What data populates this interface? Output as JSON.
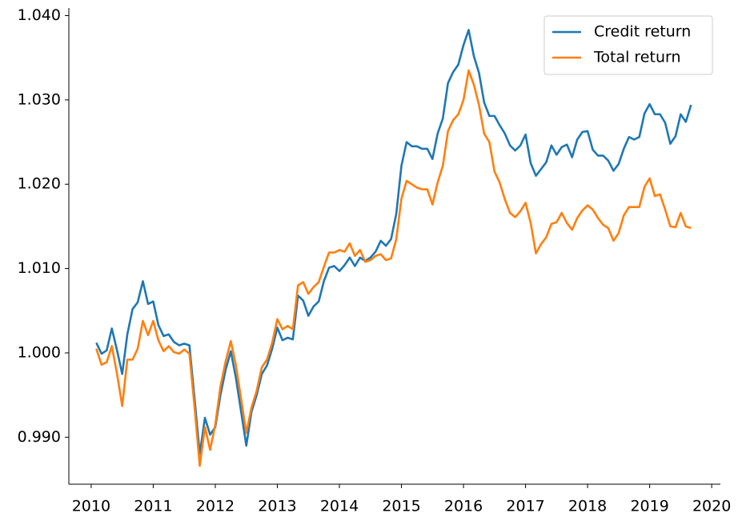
{
  "chart_data": {
    "type": "line",
    "x": [
      2010.083,
      2010.167,
      2010.25,
      2010.333,
      2010.417,
      2010.5,
      2010.583,
      2010.667,
      2010.75,
      2010.833,
      2010.917,
      2011.0,
      2011.083,
      2011.167,
      2011.25,
      2011.333,
      2011.417,
      2011.5,
      2011.583,
      2011.667,
      2011.75,
      2011.833,
      2011.917,
      2012.0,
      2012.083,
      2012.167,
      2012.25,
      2012.333,
      2012.417,
      2012.5,
      2012.583,
      2012.667,
      2012.75,
      2012.833,
      2012.917,
      2013.0,
      2013.083,
      2013.167,
      2013.25,
      2013.333,
      2013.417,
      2013.5,
      2013.583,
      2013.667,
      2013.75,
      2013.833,
      2013.917,
      2014.0,
      2014.083,
      2014.167,
      2014.25,
      2014.333,
      2014.417,
      2014.5,
      2014.583,
      2014.667,
      2014.75,
      2014.833,
      2014.917,
      2015.0,
      2015.083,
      2015.167,
      2015.25,
      2015.333,
      2015.417,
      2015.5,
      2015.583,
      2015.667,
      2015.75,
      2015.833,
      2015.917,
      2016.0,
      2016.083,
      2016.167,
      2016.25,
      2016.333,
      2016.417,
      2016.5,
      2016.583,
      2016.667,
      2016.75,
      2016.833,
      2016.917,
      2017.0,
      2017.083,
      2017.167,
      2017.25,
      2017.333,
      2017.417,
      2017.5,
      2017.583,
      2017.667,
      2017.75,
      2017.833,
      2017.917,
      2018.0,
      2018.083,
      2018.167,
      2018.25,
      2018.333,
      2018.417,
      2018.5,
      2018.583,
      2018.667,
      2018.75,
      2018.833,
      2018.917,
      2019.0,
      2019.083,
      2019.167,
      2019.25,
      2019.333,
      2019.417,
      2019.5,
      2019.583,
      2019.667
    ],
    "series": [
      {
        "name": "Credit return",
        "color": "#1f77b4",
        "values": [
          1.0012,
          0.9999,
          1.0003,
          1.0029,
          1.0003,
          0.9975,
          1.0022,
          1.0052,
          1.006,
          1.0085,
          1.0058,
          1.0061,
          1.0033,
          1.002,
          1.0022,
          1.0013,
          1.0009,
          1.0011,
          1.0009,
          0.9945,
          0.988,
          0.9923,
          0.9903,
          0.9912,
          0.995,
          0.998,
          1.0002,
          0.997,
          0.993,
          0.989,
          0.993,
          0.995,
          0.9975,
          0.9985,
          1.0005,
          1.003,
          1.0015,
          1.0018,
          1.0016,
          1.0068,
          1.0062,
          1.0044,
          1.0055,
          1.0061,
          1.0085,
          1.0101,
          1.0103,
          1.0097,
          1.0104,
          1.0113,
          1.0103,
          1.0113,
          1.0109,
          1.0113,
          1.012,
          1.0133,
          1.0127,
          1.0135,
          1.0165,
          1.0222,
          1.025,
          1.0245,
          1.0245,
          1.0242,
          1.0242,
          1.023,
          1.026,
          1.0278,
          1.032,
          1.0333,
          1.0342,
          1.0365,
          1.0383,
          1.0352,
          1.0332,
          1.0297,
          1.0281,
          1.0281,
          1.027,
          1.026,
          1.0246,
          1.024,
          1.0246,
          1.0259,
          1.0225,
          1.021,
          1.0218,
          1.0226,
          1.0246,
          1.0235,
          1.0244,
          1.0247,
          1.0232,
          1.0253,
          1.0262,
          1.0263,
          1.0241,
          1.0234,
          1.0234,
          1.0228,
          1.0216,
          1.0224,
          1.0242,
          1.0256,
          1.0253,
          1.0256,
          1.0284,
          1.0295,
          1.0283,
          1.0283,
          1.0273,
          1.0248,
          1.0257,
          1.0283,
          1.0274,
          1.0294
        ]
      },
      {
        "name": "Total return",
        "color": "#ff7f0e",
        "values": [
          1.0005,
          0.9986,
          0.9989,
          1.0008,
          0.9975,
          0.9937,
          0.9992,
          0.9992,
          1.0005,
          1.0038,
          1.0021,
          1.0038,
          1.0015,
          1.0002,
          1.0008,
          1.0001,
          0.9999,
          1.0004,
          0.9999,
          0.9935,
          0.9866,
          0.9912,
          0.9885,
          0.9915,
          0.996,
          0.999,
          1.0014,
          0.9985,
          0.9945,
          0.9905,
          0.9935,
          0.9955,
          0.9983,
          0.9992,
          1.0012,
          1.004,
          1.0028,
          1.0032,
          1.0028,
          1.008,
          1.0084,
          1.007,
          1.0078,
          1.0084,
          1.0102,
          1.0119,
          1.0119,
          1.0122,
          1.012,
          1.013,
          1.0115,
          1.0122,
          1.0108,
          1.011,
          1.0115,
          1.0117,
          1.011,
          1.0112,
          1.0135,
          1.0183,
          1.0204,
          1.02,
          1.0196,
          1.0194,
          1.0194,
          1.0176,
          1.0202,
          1.0222,
          1.0263,
          1.0276,
          1.0283,
          1.03,
          1.0335,
          1.0318,
          1.0294,
          1.026,
          1.025,
          1.0215,
          1.0202,
          1.0182,
          1.0166,
          1.0161,
          1.0168,
          1.0178,
          1.0154,
          1.0118,
          1.0129,
          1.0137,
          1.0153,
          1.0155,
          1.0166,
          1.0154,
          1.0146,
          1.016,
          1.0169,
          1.0175,
          1.017,
          1.016,
          1.0152,
          1.0148,
          1.0133,
          1.0142,
          1.0163,
          1.0173,
          1.0173,
          1.0173,
          1.0197,
          1.0207,
          1.0186,
          1.0188,
          1.017,
          1.015,
          1.0149,
          1.0166,
          1.015,
          1.0148
        ]
      }
    ],
    "xlim": [
      2009.64,
      2020.14
    ],
    "xticks": [
      2010,
      2011,
      2012,
      2013,
      2014,
      2015,
      2016,
      2017,
      2018,
      2019,
      2020
    ],
    "ylim": [
      0.98443,
      1.0409
    ],
    "yticks": [
      {
        "value": 0.99,
        "label": "0.990"
      },
      {
        "value": 1.0,
        "label": "1.000"
      },
      {
        "value": 1.01,
        "label": "1.010"
      },
      {
        "value": 1.02,
        "label": "1.020"
      },
      {
        "value": 1.03,
        "label": "1.030"
      },
      {
        "value": 1.04,
        "label": "1.040"
      }
    ],
    "legend": "upper right"
  }
}
